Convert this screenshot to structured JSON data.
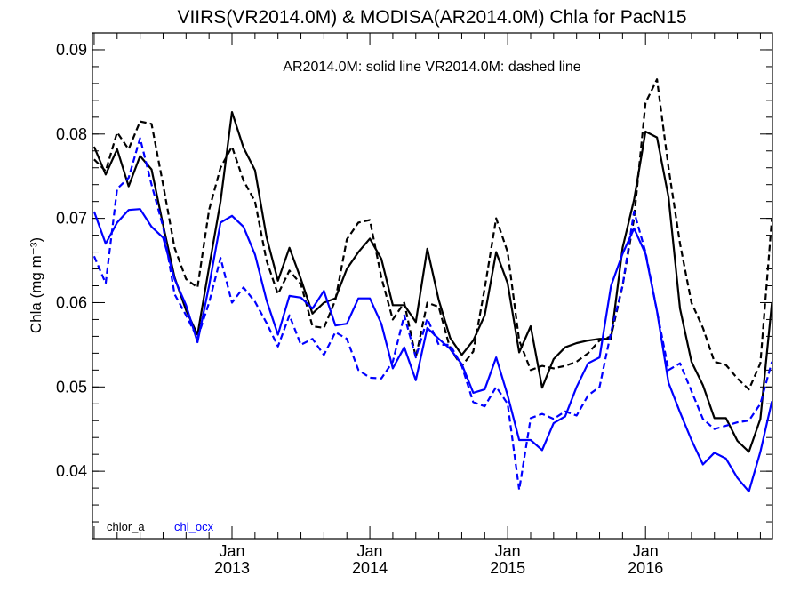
{
  "chart_data": {
    "type": "line",
    "title": "VIIRS(VR2014.0M) & MODISA(AR2014.0M)  Chla for PacN15",
    "annotation": "AR2014.0M: solid line   VR2014.0M: dashed line",
    "ylabel": "Chla (mg m⁻³)",
    "xlabel": "",
    "ylim": [
      0.032,
      0.092
    ],
    "yticks": [
      "0.04",
      "0.05",
      "0.06",
      "0.07",
      "0.08",
      "0.09"
    ],
    "xlim": [
      "2012-01",
      "2016-12"
    ],
    "xticks": [
      {
        "month": "Jan",
        "year": "2013",
        "date": "2013-01"
      },
      {
        "month": "Jan",
        "year": "2014",
        "date": "2014-01"
      },
      {
        "month": "Jan",
        "year": "2015",
        "date": "2015-01"
      },
      {
        "month": "Jan",
        "year": "2016",
        "date": "2016-01"
      }
    ],
    "legend": [
      {
        "label": "chlor_a",
        "color": "#000000"
      },
      {
        "label": "chl_ocx",
        "color": "#0000ff"
      }
    ],
    "x": [
      "2012-01",
      "2012-02",
      "2012-03",
      "2012-04",
      "2012-05",
      "2012-06",
      "2012-07",
      "2012-08",
      "2012-09",
      "2012-10",
      "2012-11",
      "2012-12",
      "2013-01",
      "2013-02",
      "2013-03",
      "2013-04",
      "2013-05",
      "2013-06",
      "2013-07",
      "2013-08",
      "2013-09",
      "2013-10",
      "2013-11",
      "2013-12",
      "2014-01",
      "2014-02",
      "2014-03",
      "2014-04",
      "2014-05",
      "2014-06",
      "2014-07",
      "2014-08",
      "2014-09",
      "2014-10",
      "2014-11",
      "2014-12",
      "2015-01",
      "2015-02",
      "2015-03",
      "2015-04",
      "2015-05",
      "2015-06",
      "2015-07",
      "2015-08",
      "2015-09",
      "2015-10",
      "2015-11",
      "2015-12",
      "2016-01",
      "2016-02",
      "2016-03",
      "2016-04",
      "2016-05",
      "2016-06",
      "2016-07",
      "2016-08",
      "2016-09",
      "2016-10",
      "2016-11",
      "2016-12"
    ],
    "series": [
      {
        "product": "chlor_a",
        "sensor": "AR2014.0M",
        "color": "#000000",
        "style": "solid",
        "values": [
          0.0785,
          0.0752,
          0.0782,
          0.0738,
          0.0774,
          0.0758,
          0.0692,
          0.063,
          0.0591,
          0.0562,
          0.0642,
          0.072,
          0.0826,
          0.0784,
          0.0757,
          0.0678,
          0.0626,
          0.0665,
          0.0628,
          0.0587,
          0.06,
          0.0605,
          0.064,
          0.066,
          0.0676,
          0.0652,
          0.0597,
          0.0597,
          0.0577,
          0.0664,
          0.0603,
          0.0558,
          0.0538,
          0.0555,
          0.0585,
          0.066,
          0.0623,
          0.0541,
          0.0572,
          0.0499,
          0.0533,
          0.0547,
          0.0552,
          0.0555,
          0.0557,
          0.0557,
          0.0665,
          0.0722,
          0.0803,
          0.0796,
          0.0725,
          0.0593,
          0.053,
          0.0502,
          0.0463,
          0.0463,
          0.0436,
          0.0423,
          0.0462,
          0.06
        ]
      },
      {
        "product": "chlor_a",
        "sensor": "VR2014.0M",
        "color": "#000000",
        "style": "dashed",
        "values": [
          0.077,
          0.0756,
          0.0802,
          0.0782,
          0.0815,
          0.0812,
          0.074,
          0.0665,
          0.0628,
          0.0618,
          0.071,
          0.076,
          0.0785,
          0.0745,
          0.072,
          0.065,
          0.061,
          0.0638,
          0.0622,
          0.0572,
          0.057,
          0.0603,
          0.0675,
          0.0695,
          0.0698,
          0.063,
          0.058,
          0.06,
          0.0535,
          0.06,
          0.0595,
          0.0545,
          0.0525,
          0.0542,
          0.0617,
          0.07,
          0.066,
          0.0555,
          0.052,
          0.0525,
          0.0522,
          0.0525,
          0.053,
          0.054,
          0.0555,
          0.056,
          0.062,
          0.07,
          0.0837,
          0.0865,
          0.076,
          0.067,
          0.06,
          0.057,
          0.053,
          0.0526,
          0.051,
          0.0497,
          0.0528,
          0.07
        ]
      },
      {
        "product": "chl_ocx",
        "sensor": "AR2014.0M",
        "color": "#0000ff",
        "style": "solid",
        "values": [
          0.0708,
          0.067,
          0.0695,
          0.071,
          0.0711,
          0.069,
          0.0677,
          0.0628,
          0.0597,
          0.0553,
          0.062,
          0.0695,
          0.0703,
          0.069,
          0.0657,
          0.0603,
          0.0562,
          0.0608,
          0.0606,
          0.0593,
          0.0614,
          0.0573,
          0.0575,
          0.0605,
          0.0605,
          0.0575,
          0.0522,
          0.0547,
          0.0508,
          0.057,
          0.0557,
          0.0545,
          0.0527,
          0.0493,
          0.0497,
          0.0535,
          0.049,
          0.0437,
          0.0437,
          0.0425,
          0.0457,
          0.0465,
          0.05,
          0.0528,
          0.0535,
          0.062,
          0.0658,
          0.0688,
          0.0658,
          0.059,
          0.0505,
          0.047,
          0.0437,
          0.0408,
          0.0422,
          0.0415,
          0.0392,
          0.0376,
          0.0423,
          0.0483
        ]
      },
      {
        "product": "chl_ocx",
        "sensor": "VR2014.0M",
        "color": "#0000ff",
        "style": "dashed",
        "values": [
          0.0655,
          0.0623,
          0.0735,
          0.0748,
          0.0795,
          0.074,
          0.069,
          0.061,
          0.0585,
          0.0558,
          0.06,
          0.0653,
          0.06,
          0.0618,
          0.0601,
          0.0576,
          0.0548,
          0.0585,
          0.055,
          0.0557,
          0.0538,
          0.0565,
          0.0557,
          0.052,
          0.0511,
          0.051,
          0.053,
          0.0585,
          0.0535,
          0.0581,
          0.055,
          0.055,
          0.0525,
          0.0482,
          0.0477,
          0.05,
          0.048,
          0.0378,
          0.0463,
          0.0468,
          0.0462,
          0.0471,
          0.0466,
          0.049,
          0.05,
          0.0565,
          0.062,
          0.0708,
          0.066,
          0.059,
          0.052,
          0.0528,
          0.0495,
          0.0462,
          0.045,
          0.0454,
          0.0458,
          0.046,
          0.048,
          0.053
        ]
      }
    ]
  }
}
